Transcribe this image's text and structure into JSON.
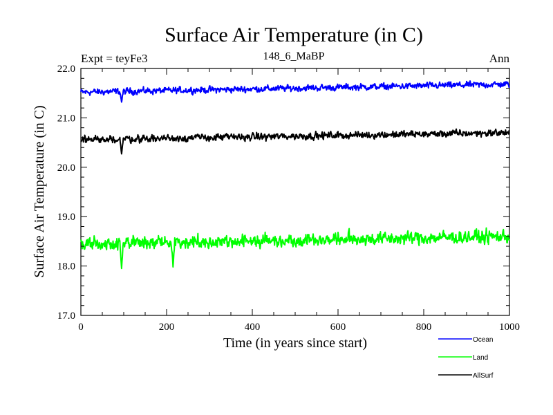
{
  "chart_data": {
    "type": "line",
    "title": "Surface Air Temperature (in C)",
    "subtitle": "148_6_MaBP",
    "left_label": "Expt = teyFe3",
    "right_label": "Ann",
    "xlabel": "Time (in years since start)",
    "ylabel": "Surface Air Temperature (in C)",
    "xlim": [
      0,
      1000
    ],
    "ylim": [
      17.0,
      22.0
    ],
    "x_ticks": [
      0,
      200,
      400,
      600,
      800,
      1000
    ],
    "x_tick_labels": [
      "0",
      "200",
      "400",
      "600",
      "800",
      "1000"
    ],
    "y_ticks": [
      17.0,
      18.0,
      19.0,
      20.0,
      21.0,
      22.0
    ],
    "y_tick_labels": [
      "17.0",
      "18.0",
      "19.0",
      "20.0",
      "21.0",
      "22.0"
    ],
    "legend_position": "bottom-right, outside plot",
    "series": [
      {
        "name": "Ocean",
        "color": "#0000ff",
        "start_mean": 21.52,
        "end_mean": 21.68,
        "amplitude": 0.09,
        "min": 21.3,
        "max": 21.85,
        "dips": [
          {
            "year": 95,
            "value": 21.32
          }
        ]
      },
      {
        "name": "Land",
        "color": "#00ff00",
        "start_mean": 18.45,
        "end_mean": 18.6,
        "amplitude": 0.18,
        "min": 17.95,
        "max": 18.98,
        "dips": [
          {
            "year": 95,
            "value": 17.95
          },
          {
            "year": 215,
            "value": 17.98
          }
        ]
      },
      {
        "name": "AllSurf",
        "color": "#000000",
        "start_mean": 20.56,
        "end_mean": 20.7,
        "amplitude": 0.1,
        "min": 20.27,
        "max": 20.93,
        "dips": [
          {
            "year": 95,
            "value": 20.27
          }
        ]
      }
    ]
  }
}
